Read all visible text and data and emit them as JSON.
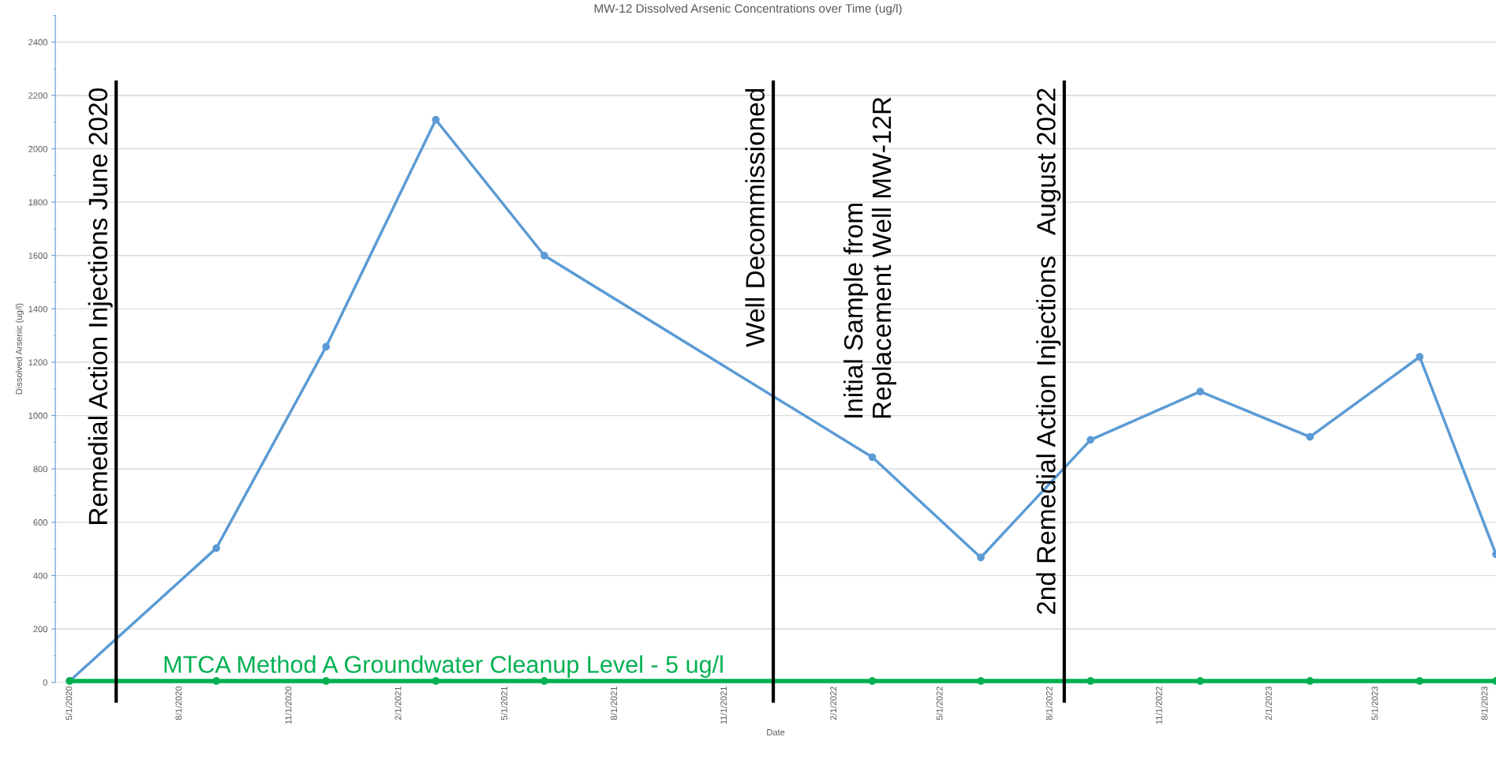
{
  "chart_data": {
    "type": "line",
    "title": "MW-12 Dissolved Arsenic Concentrations over Time (ug/l)",
    "xlabel": "Date",
    "ylabel": "Dissolved Arsenic (ug/l)",
    "x": [
      "2020-05-01",
      "2020-09-01",
      "2020-12-02",
      "2021-03-04",
      "2021-06-03",
      "2022-03-05",
      "2022-06-04",
      "2022-09-04",
      "2022-12-05",
      "2023-03-07",
      "2023-06-07",
      "2023-08-10"
    ],
    "series": [
      {
        "color": "#5b9bd5",
        "values": [
          5,
          503,
          1258,
          2109,
          1600,
          844,
          468,
          909,
          1090,
          920,
          1220,
          480
        ]
      },
      {
        "name": "MTCA Method A Groundwater Cleanup Level - 5 ug/l",
        "color": "#00b050",
        "values": [
          5,
          5,
          5,
          5,
          5,
          5,
          5,
          5,
          5,
          5,
          5,
          5
        ]
      }
    ],
    "xlim": [
      "2020-04-19",
      "2023-08-10"
    ],
    "xticks": [
      {
        "value": "2020-05-01",
        "label": "5/1/2020"
      },
      {
        "value": "2020-08-01",
        "label": "8/1/2020"
      },
      {
        "value": "2020-11-01",
        "label": "11/1/2020"
      },
      {
        "value": "2021-02-01",
        "label": "2/1/2021"
      },
      {
        "value": "2021-05-01",
        "label": "5/1/2021"
      },
      {
        "value": "2021-08-01",
        "label": "8/1/2021"
      },
      {
        "value": "2021-11-01",
        "label": "11/1/2021"
      },
      {
        "value": "2022-02-01",
        "label": "2/1/2022"
      },
      {
        "value": "2022-05-01",
        "label": "5/1/2022"
      },
      {
        "value": "2022-08-01",
        "label": "8/1/2022"
      },
      {
        "value": "2022-11-01",
        "label": "11/1/2022"
      },
      {
        "value": "2023-02-01",
        "label": "2/1/2023"
      },
      {
        "value": "2023-05-01",
        "label": "5/1/2023"
      },
      {
        "value": "2023-08-01",
        "label": "8/1/2023"
      }
    ],
    "ylim": [
      0,
      2500
    ],
    "yticks": [
      0,
      200,
      400,
      600,
      800,
      1000,
      1200,
      1400,
      1600,
      1800,
      2000,
      2200,
      2400
    ],
    "grid": "y",
    "marker": "circle",
    "line_style": "solid",
    "legend": false,
    "ref_lines": [
      {
        "axis": "x",
        "value": "2020-06-09",
        "label": "Remedial Action Injections June 2020",
        "color": "#000000"
      },
      {
        "axis": "x",
        "value": "2021-12-12",
        "label": "Well Decommissioned",
        "color": "#000000"
      },
      {
        "axis": "x",
        "value": "2022-08-13",
        "label": "2nd Remedial Action Injections   August 2022",
        "color": "#000000"
      }
    ],
    "annotations": [
      {
        "text": "Initial Sample from\nReplacement Well MW-12R",
        "x": "2022-03-05",
        "y": 844
      }
    ]
  }
}
